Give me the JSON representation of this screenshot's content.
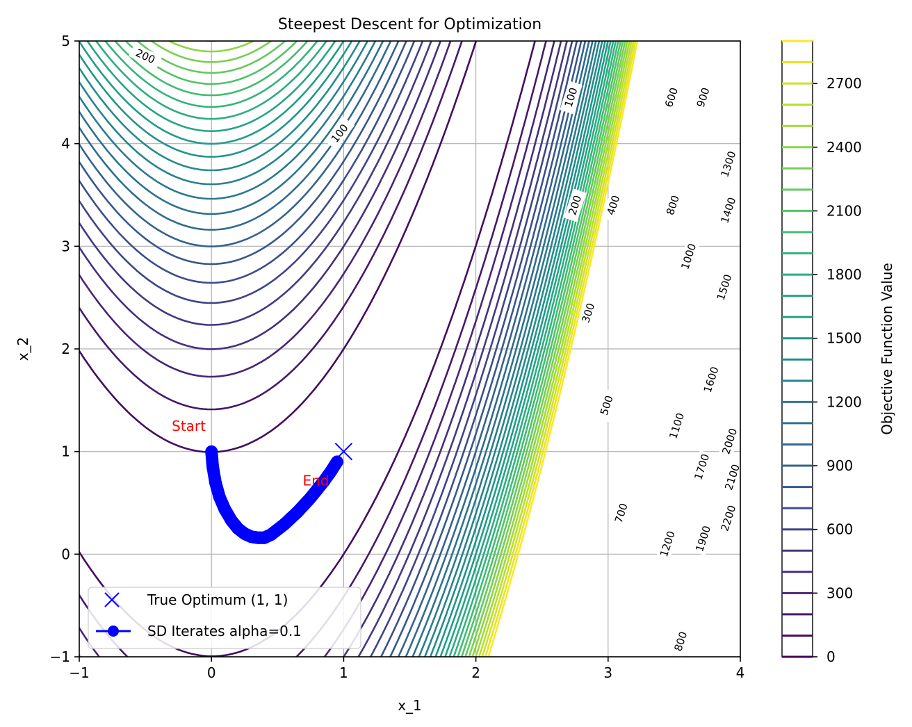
{
  "chart_data": {
    "type": "contour",
    "title": "Steepest Descent for Optimization",
    "xlabel": "x_1",
    "ylabel": "x_2",
    "xlim": [
      -1,
      4
    ],
    "ylim": [
      -1,
      5
    ],
    "xticks": [
      -1,
      0,
      1,
      2,
      3,
      4
    ],
    "yticks": [
      -1,
      0,
      1,
      2,
      3,
      4,
      5
    ],
    "xtick_labels": [
      "−1",
      "0",
      "1",
      "2",
      "3",
      "4"
    ],
    "ytick_labels": [
      "−1",
      "0",
      "1",
      "2",
      "3",
      "4",
      "5"
    ],
    "grid": true,
    "function": "Rosenbrock",
    "contour_levels": [
      0,
      100,
      200,
      300,
      400,
      500,
      600,
      700,
      800,
      900,
      1000,
      1100,
      1200,
      1300,
      1400,
      1500,
      1600,
      1700,
      1800,
      1900,
      2000,
      2100,
      2200,
      2300,
      2400,
      2500,
      2600,
      2700,
      2800,
      2900
    ],
    "labeled_levels": [
      {
        "level": 200,
        "text": "200"
      },
      {
        "level": 100,
        "text": "100"
      },
      {
        "level": 100,
        "text": "100"
      },
      {
        "level": 200,
        "text": "200"
      },
      {
        "level": 300,
        "text": "300"
      },
      {
        "level": 400,
        "text": "400"
      },
      {
        "level": 500,
        "text": "500"
      },
      {
        "level": 600,
        "text": "600"
      },
      {
        "level": 700,
        "text": "700"
      },
      {
        "level": 800,
        "text": "800"
      },
      {
        "level": 900,
        "text": "900"
      },
      {
        "level": 1000,
        "text": "1000"
      },
      {
        "level": 1100,
        "text": "1100"
      },
      {
        "level": 1200,
        "text": "1200"
      },
      {
        "level": 1300,
        "text": "1300"
      },
      {
        "level": 1400,
        "text": "1400"
      },
      {
        "level": 1500,
        "text": "1500"
      },
      {
        "level": 1600,
        "text": "1600"
      },
      {
        "level": 1700,
        "text": "1700"
      },
      {
        "level": 1900,
        "text": "1900"
      },
      {
        "level": 2000,
        "text": "2000"
      },
      {
        "level": 2100,
        "text": "2100"
      },
      {
        "level": 2200,
        "text": "2200"
      },
      {
        "level": 800,
        "text": "800"
      }
    ],
    "colorbar": {
      "label": "Objective Function Value",
      "colormap": "viridis",
      "range": [
        0,
        2900
      ],
      "ticks": [
        0,
        300,
        600,
        900,
        1200,
        1500,
        1800,
        2100,
        2400,
        2700
      ],
      "tick_labels": [
        "0",
        "300",
        "600",
        "900",
        "1200",
        "1500",
        "1800",
        "2100",
        "2400",
        "2700"
      ]
    },
    "series": [
      {
        "name": "True Optimum (1, 1)",
        "type": "marker",
        "marker": "x",
        "color": "#0000ff",
        "x": [
          1
        ],
        "y": [
          1
        ]
      },
      {
        "name": "SD Iterates alpha=0.1",
        "type": "line-marker",
        "marker": "o",
        "color": "#0000ff",
        "x": [
          0.0,
          0.01,
          0.03,
          0.06,
          0.1,
          0.15,
          0.2,
          0.25,
          0.3,
          0.35,
          0.4,
          0.45,
          0.5,
          0.55,
          0.6,
          0.65,
          0.7,
          0.75,
          0.8,
          0.85,
          0.9,
          0.95
        ],
        "y": [
          1.0,
          0.85,
          0.7,
          0.56,
          0.44,
          0.33,
          0.25,
          0.2,
          0.17,
          0.16,
          0.16,
          0.19,
          0.24,
          0.29,
          0.35,
          0.41,
          0.48,
          0.55,
          0.63,
          0.71,
          0.8,
          0.9
        ]
      }
    ],
    "annotations": [
      {
        "text": "Start",
        "x": -0.3,
        "y": 1.2,
        "color": "#ff0000"
      },
      {
        "text": "End",
        "x": 0.69,
        "y": 0.67,
        "color": "#ff0000"
      }
    ],
    "legend": {
      "placement": "lower-left",
      "entries": [
        "True Optimum (1, 1)",
        "SD Iterates alpha=0.1"
      ]
    }
  }
}
